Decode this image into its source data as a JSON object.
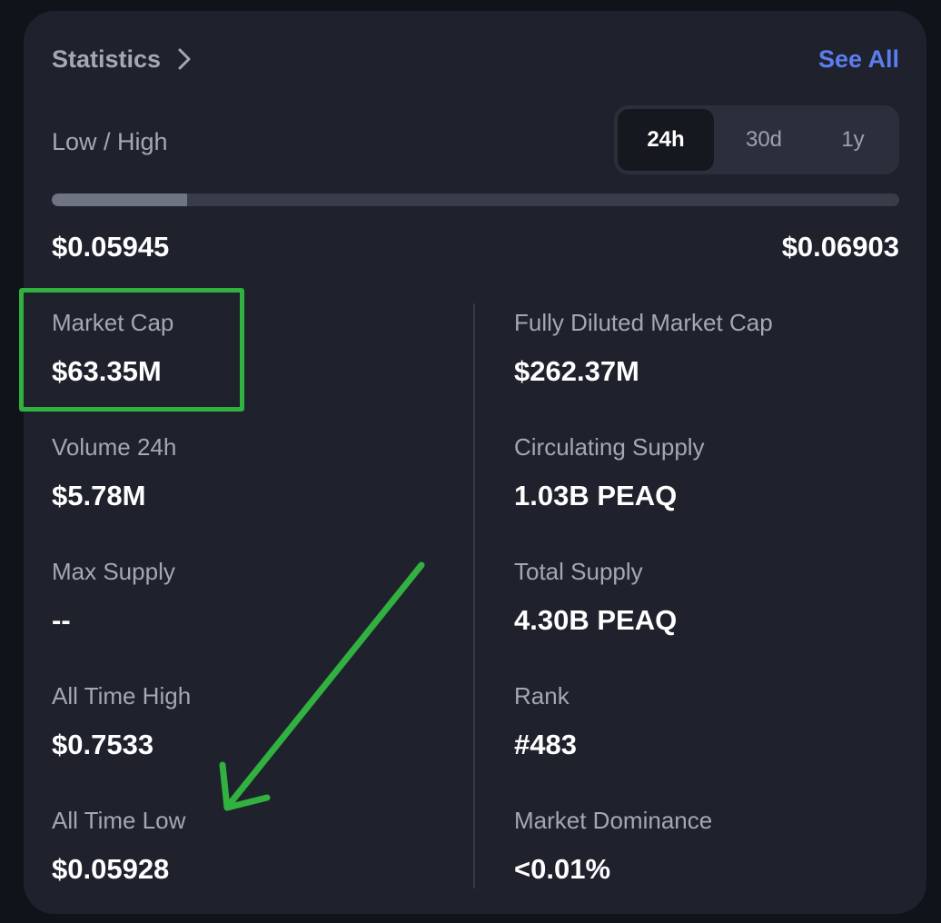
{
  "header": {
    "title": "Statistics",
    "see_all_label": "See All"
  },
  "range": {
    "label": "Low / High",
    "tabs": [
      {
        "label": "24h",
        "active": true
      },
      {
        "label": "30d",
        "active": false
      },
      {
        "label": "1y",
        "active": false
      }
    ],
    "progress_fraction": 0.16,
    "low": "$0.05945",
    "high": "$0.06903"
  },
  "stats": {
    "left": [
      {
        "label": "Market Cap",
        "value": "$63.35M"
      },
      {
        "label": "Volume 24h",
        "value": "$5.78M"
      },
      {
        "label": "Max Supply",
        "value": "--"
      },
      {
        "label": "All Time High",
        "value": "$0.7533"
      },
      {
        "label": "All Time Low",
        "value": "$0.05928"
      }
    ],
    "right": [
      {
        "label": "Fully Diluted Market Cap",
        "value": "$262.37M"
      },
      {
        "label": "Circulating Supply",
        "value": "1.03B PEAQ"
      },
      {
        "label": "Total Supply",
        "value": "4.30B PEAQ"
      },
      {
        "label": "Rank",
        "value": "#483"
      },
      {
        "label": "Market Dominance",
        "value": "<0.01%"
      }
    ]
  },
  "colors": {
    "background": "#11131a",
    "card": "#1f222d",
    "accent": "#5b7dee",
    "annotation": "#31b140"
  },
  "icons": {
    "header_chevron": "chevron-right-icon"
  }
}
